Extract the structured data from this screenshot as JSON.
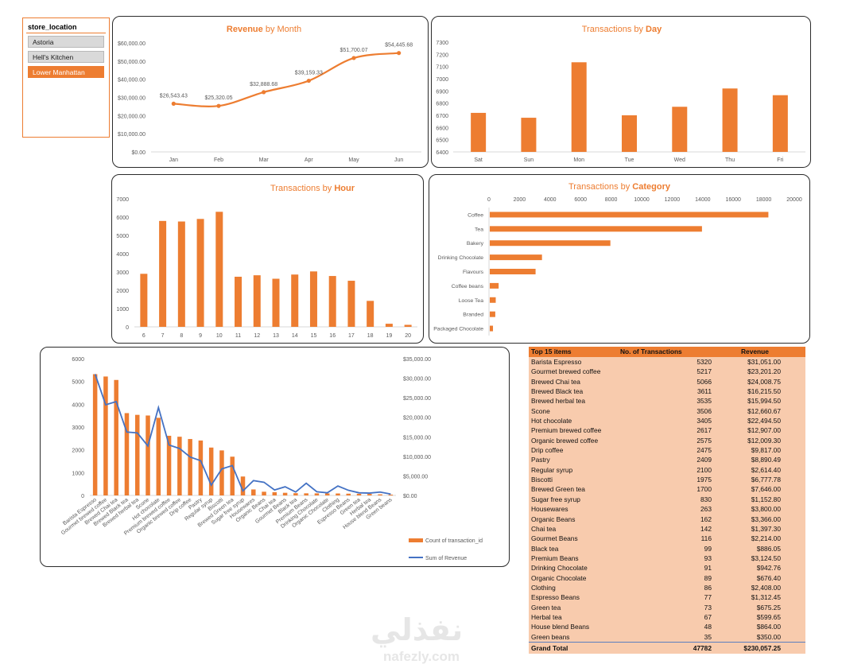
{
  "colors": {
    "accent": "#ed7d31",
    "line_series": "#4472c4",
    "table_bg": "#f8cbad",
    "axis_text": "#595959"
  },
  "slicer": {
    "title": "store_location",
    "items": [
      {
        "label": "Astoria",
        "selected": false
      },
      {
        "label": "Hell's Kitchen",
        "selected": false
      },
      {
        "label": "Lower Manhattan",
        "selected": true
      }
    ]
  },
  "chart_data": [
    {
      "id": "revenue_by_month",
      "type": "line",
      "title_bold": "Revenue",
      "title_rest": " by Month",
      "categories": [
        "Jan",
        "Feb",
        "Mar",
        "Apr",
        "May",
        "Jun"
      ],
      "values": [
        26543.43,
        25320.05,
        32888.68,
        39159.33,
        51700.07,
        54445.68
      ],
      "data_labels": [
        "$26,543.43",
        "$25,320.05",
        "$32,888.68",
        "$39,159.33",
        "$51,700.07",
        "$54,445.68"
      ],
      "ylim": [
        0,
        60000
      ],
      "yticks": [
        "$0.00",
        "$10,000.00",
        "$20,000.00",
        "$30,000.00",
        "$40,000.00",
        "$50,000.00",
        "$60,000.00"
      ],
      "grid": false
    },
    {
      "id": "transactions_by_day",
      "type": "bar",
      "title_rest": "Transactions by ",
      "title_bold": "Day",
      "categories": [
        "Sat",
        "Sun",
        "Mon",
        "Tue",
        "Wed",
        "Thu",
        "Fri"
      ],
      "values": [
        6720,
        6680,
        7135,
        6700,
        6770,
        6920,
        6865
      ],
      "ylim": [
        6400,
        7300
      ],
      "yticks": [
        "6400",
        "6500",
        "6600",
        "6700",
        "6800",
        "6900",
        "7000",
        "7100",
        "7200",
        "7300"
      ]
    },
    {
      "id": "transactions_by_hour",
      "type": "bar",
      "title_rest": "Transactions by ",
      "title_bold": "Hour",
      "categories": [
        "6",
        "7",
        "8",
        "9",
        "10",
        "11",
        "12",
        "13",
        "14",
        "15",
        "16",
        "17",
        "18",
        "19",
        "20"
      ],
      "values": [
        2900,
        5790,
        5760,
        5900,
        6290,
        2740,
        2820,
        2630,
        2860,
        3030,
        2780,
        2520,
        1420,
        170,
        110
      ],
      "ylim": [
        0,
        7000
      ],
      "yticks": [
        "0",
        "1000",
        "2000",
        "3000",
        "4000",
        "5000",
        "6000",
        "7000"
      ]
    },
    {
      "id": "transactions_by_category",
      "type": "bar",
      "orientation": "horizontal",
      "title_rest": "Transactions by ",
      "title_bold": "Category",
      "categories": [
        "Coffee",
        "Tea",
        "Bakery",
        "Drinking Chocolate",
        "Flavours",
        "Coffee beans",
        "Loose Tea",
        "Branded",
        "Packaged Chocolate"
      ],
      "values": [
        18250,
        13900,
        7900,
        3420,
        3000,
        580,
        390,
        360,
        210
      ],
      "xlim": [
        0,
        20000
      ],
      "xticks": [
        "0",
        "2000",
        "4000",
        "6000",
        "8000",
        "10000",
        "12000",
        "14000",
        "16000",
        "18000",
        "20000"
      ]
    },
    {
      "id": "top_items_combo",
      "type": "bar",
      "combo_with": "line",
      "categories": [
        "Barista Espresso",
        "Gourmet brewed coffee",
        "Brewed Chai tea",
        "Brewed Black tea",
        "Brewed herbal tea",
        "Scone",
        "Hot chocolate",
        "Premium brewed coffee",
        "Organic brewed coffee",
        "Drip coffee",
        "Pastry",
        "Regular syrup",
        "Biscotti",
        "Brewed Green tea",
        "Sugar free syrup",
        "Housewares",
        "Organic Beans",
        "Chai tea",
        "Gourmet Beans",
        "Black tea",
        "Premium Beans",
        "Drinking Chocolate",
        "Organic Chocolate",
        "Clothing",
        "Espresso Beans",
        "Green tea",
        "Herbal tea",
        "House blend Beans",
        "Green beans"
      ],
      "series": [
        {
          "name": "Count of transaction_id",
          "axis": "left",
          "values": [
            5320,
            5217,
            5066,
            3611,
            3535,
            3506,
            3405,
            2617,
            2575,
            2475,
            2409,
            2100,
            1975,
            1700,
            830,
            263,
            162,
            142,
            116,
            99,
            93,
            91,
            89,
            86,
            77,
            73,
            67,
            48,
            35
          ]
        },
        {
          "name": "Sum of Revenue",
          "axis": "right",
          "values": [
            31051.0,
            23201.2,
            24008.75,
            16215.5,
            15994.5,
            12660.67,
            22494.5,
            12907.0,
            12009.3,
            9817.0,
            8890.49,
            2614.4,
            6777.78,
            7646.0,
            1152.8,
            3800.0,
            3366.0,
            1397.3,
            2214.0,
            886.05,
            3124.5,
            942.76,
            676.4,
            2408.0,
            1312.45,
            675.25,
            599.65,
            864.0,
            350.0
          ]
        }
      ],
      "ylim_left": [
        0,
        6000
      ],
      "yticks_left": [
        "0",
        "1000",
        "2000",
        "3000",
        "4000",
        "5000",
        "6000"
      ],
      "ylim_right": [
        0,
        35000
      ],
      "yticks_right": [
        "$0.00",
        "$5,000.00",
        "$10,000.00",
        "$15,000.00",
        "$20,000.00",
        "$25,000.00",
        "$30,000.00",
        "$35,000.00"
      ]
    },
    {
      "id": "top_items_table",
      "type": "table",
      "headers": [
        "Top 15 items",
        "No. of Transactions",
        "Revenue"
      ],
      "rows": [
        [
          "Barista Espresso",
          "5320",
          "$31,051.00"
        ],
        [
          "Gourmet brewed coffee",
          "5217",
          "$23,201.20"
        ],
        [
          "Brewed Chai tea",
          "5066",
          "$24,008.75"
        ],
        [
          "Brewed Black tea",
          "3611",
          "$16,215.50"
        ],
        [
          "Brewed herbal tea",
          "3535",
          "$15,994.50"
        ],
        [
          "Scone",
          "3506",
          "$12,660.67"
        ],
        [
          "Hot chocolate",
          "3405",
          "$22,494.50"
        ],
        [
          "Premium brewed coffee",
          "2617",
          "$12,907.00"
        ],
        [
          "Organic brewed coffee",
          "2575",
          "$12,009.30"
        ],
        [
          "Drip coffee",
          "2475",
          "$9,817.00"
        ],
        [
          "Pastry",
          "2409",
          "$8,890.49"
        ],
        [
          "Regular syrup",
          "2100",
          "$2,614.40"
        ],
        [
          "Biscotti",
          "1975",
          "$6,777.78"
        ],
        [
          "Brewed Green tea",
          "1700",
          "$7,646.00"
        ],
        [
          "Sugar free syrup",
          "830",
          "$1,152.80"
        ],
        [
          "Housewares",
          "263",
          "$3,800.00"
        ],
        [
          "Organic Beans",
          "162",
          "$3,366.00"
        ],
        [
          "Chai tea",
          "142",
          "$1,397.30"
        ],
        [
          "Gourmet Beans",
          "116",
          "$2,214.00"
        ],
        [
          "Black tea",
          "99",
          "$886.05"
        ],
        [
          "Premium Beans",
          "93",
          "$3,124.50"
        ],
        [
          "Drinking Chocolate",
          "91",
          "$942.76"
        ],
        [
          "Organic Chocolate",
          "89",
          "$676.40"
        ],
        [
          "Clothing",
          "86",
          "$2,408.00"
        ],
        [
          "Espresso Beans",
          "77",
          "$1,312.45"
        ],
        [
          "Green tea",
          "73",
          "$675.25"
        ],
        [
          "Herbal tea",
          "67",
          "$599.65"
        ],
        [
          "House blend Beans",
          "48",
          "$864.00"
        ],
        [
          "Green beans",
          "35",
          "$350.00"
        ]
      ],
      "total": [
        "Grand Total",
        "47782",
        "$230,057.25"
      ]
    }
  ],
  "watermark": {
    "arabic": "نفذلي",
    "latin": "nafezly.com"
  }
}
